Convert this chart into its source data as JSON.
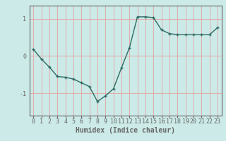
{
  "x": [
    0,
    1,
    2,
    3,
    4,
    5,
    6,
    7,
    8,
    9,
    10,
    11,
    12,
    13,
    14,
    15,
    16,
    17,
    18,
    19,
    20,
    21,
    22,
    23
  ],
  "y": [
    0.18,
    -0.08,
    -0.3,
    -0.55,
    -0.57,
    -0.62,
    -0.72,
    -0.82,
    -1.22,
    -1.07,
    -0.88,
    -0.32,
    0.22,
    1.05,
    1.05,
    1.03,
    0.7,
    0.6,
    0.57,
    0.57,
    0.57,
    0.57,
    0.57,
    0.76
  ],
  "line_color": "#2d6b63",
  "marker": "+",
  "marker_size": 3.5,
  "bg_color": "#cceae7",
  "grid_color": "#e8a0a0",
  "axis_color": "#666666",
  "xlabel": "Humidex (Indice chaleur)",
  "ylabel": "",
  "xlim": [
    -0.5,
    23.5
  ],
  "ylim": [
    -1.6,
    1.35
  ],
  "yticks": [
    -1,
    0,
    1
  ],
  "xticks": [
    0,
    1,
    2,
    3,
    4,
    5,
    6,
    7,
    8,
    9,
    10,
    11,
    12,
    13,
    14,
    15,
    16,
    17,
    18,
    19,
    20,
    21,
    22,
    23
  ],
  "xlabel_fontsize": 7.0,
  "tick_fontsize": 6.0,
  "line_width": 1.0,
  "marker_edge_width": 1.0
}
